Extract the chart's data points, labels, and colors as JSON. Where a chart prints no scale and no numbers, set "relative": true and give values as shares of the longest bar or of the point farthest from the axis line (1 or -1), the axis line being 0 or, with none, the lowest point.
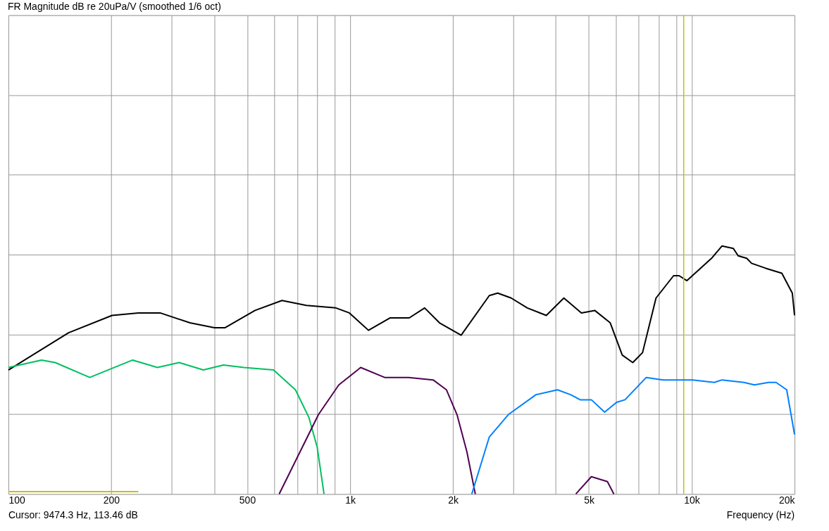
{
  "chart_data": {
    "type": "line",
    "title": "FR Magnitude dB re 20uPa/V (smoothed 1/6 oct)",
    "xlabel": "Frequency (Hz)",
    "annotations": [
      "Cursor: 9474.3 Hz, 113.46 dB"
    ],
    "relative": true,
    "log": "x",
    "grid": true,
    "marker": "none",
    "line_style": "solid",
    "xlim": [
      100,
      20000
    ],
    "xticks": [
      100,
      {
        "value": 200,
        "label": "200"
      },
      {
        "value": 300,
        "label": null
      },
      {
        "value": 400,
        "label": null
      },
      500,
      {
        "value": 600,
        "label": null
      },
      {
        "value": 700,
        "label": null
      },
      {
        "value": 800,
        "label": null
      },
      {
        "value": 900,
        "label": null
      },
      {
        "value": 1000,
        "label": "1k"
      },
      {
        "value": 2000,
        "label": "2k"
      },
      {
        "value": 3000,
        "label": null
      },
      {
        "value": 4000,
        "label": null
      },
      {
        "value": 5000,
        "label": "5k"
      },
      {
        "value": 6000,
        "label": null
      },
      {
        "value": 7000,
        "label": null
      },
      {
        "value": 8000,
        "label": null
      },
      {
        "value": 9000,
        "label": null
      },
      {
        "value": 10000,
        "label": "10k"
      },
      {
        "value": 20000,
        "label": "20k"
      }
    ],
    "ref_lines": [
      {
        "axis": "x",
        "value": 9474.3,
        "label": null,
        "color": "#c8c000"
      }
    ],
    "series": [
      {
        "color": "#000000",
        "x": [
          100,
          150,
          201,
          240,
          278,
          340,
          401,
          430,
          527,
          632,
          745,
          909,
          995,
          1132,
          1311,
          1490,
          1653,
          1827,
          2114,
          2556,
          2705,
          2962,
          3302,
          3753,
          4225,
          4755,
          5202,
          5775,
          6262,
          6722,
          7180,
          7862,
          8850,
          9186,
          9683,
          11430,
          12270,
          13240,
          13680,
          14490,
          14970,
          16470,
          18360,
          19700,
          20000
        ],
        "values": [
          0.5,
          0.65,
          0.72,
          0.73,
          0.73,
          0.69,
          0.67,
          0.67,
          0.74,
          0.78,
          0.76,
          0.75,
          0.73,
          0.66,
          0.71,
          0.71,
          0.75,
          0.69,
          0.64,
          0.8,
          0.81,
          0.79,
          0.75,
          0.72,
          0.79,
          0.73,
          0.74,
          0.69,
          0.56,
          0.53,
          0.57,
          0.79,
          0.88,
          0.88,
          0.86,
          0.95,
          1.0,
          0.99,
          0.96,
          0.95,
          0.93,
          0.91,
          0.89,
          0.81,
          0.72
        ]
      },
      {
        "color": "#00c060",
        "x": [
          100,
          125,
          137,
          173,
          231,
          273,
          316,
          372,
          426,
          489,
          597,
          692,
          757,
          801,
          839
        ],
        "values": [
          0.51,
          0.54,
          0.53,
          0.47,
          0.54,
          0.51,
          0.53,
          0.5,
          0.52,
          0.51,
          0.5,
          0.42,
          0.31,
          0.19,
          0
        ]
      },
      {
        "color": "#500050",
        "x": [
          620,
          808,
          927,
          1074,
          1262,
          1483,
          1750,
          1915,
          2056,
          2198,
          2326,
          4000,
          4580,
          5085,
          5666,
          5918
        ],
        "values": [
          0,
          0.32,
          0.44,
          0.51,
          0.47,
          0.47,
          0.46,
          0.42,
          0.32,
          0.17,
          0,
          null,
          0,
          0.07,
          0.05,
          0
        ]
      },
      {
        "color": "#0080ff",
        "x": [
          2271,
          2556,
          2905,
          3496,
          4048,
          4430,
          4715,
          5085,
          5561,
          6028,
          6380,
          7362,
          8240,
          10060,
          11650,
          12270,
          14220,
          15260,
          16790,
          17660,
          18970,
          20000
        ],
        "values": [
          0,
          0.23,
          0.32,
          0.4,
          0.42,
          0.4,
          0.38,
          0.38,
          0.33,
          0.37,
          0.38,
          0.47,
          0.46,
          0.46,
          0.45,
          0.46,
          0.45,
          0.44,
          0.45,
          0.45,
          0.42,
          0.24
        ]
      },
      {
        "color": "#c8c000",
        "x": [
          100,
          240
        ],
        "values": [
          0.01,
          0.01
        ]
      }
    ]
  }
}
